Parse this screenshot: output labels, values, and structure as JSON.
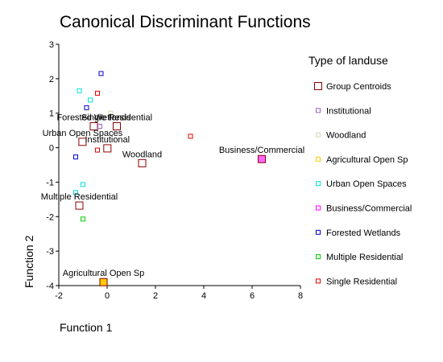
{
  "chart_data": {
    "type": "scatter",
    "title": "Canonical Discriminant Functions",
    "xlabel": "Function 1",
    "ylabel": "Function 2",
    "xlim": [
      -2,
      8
    ],
    "ylim": [
      -4,
      3
    ],
    "xticks": [
      "-2",
      "0",
      "2",
      "4",
      "6",
      "8"
    ],
    "yticks": [
      "3",
      "2",
      "1",
      "0",
      "-1",
      "-2",
      "-3",
      "-4"
    ],
    "grid": false,
    "legend_position": "right",
    "legend_title": "Type of landuse",
    "series": [
      {
        "name": "Group Centroids",
        "color": "#8b0000",
        "marker": "square-large",
        "points": [
          {
            "label": "Forested Wetlands",
            "x": -0.55,
            "y": 0.62
          },
          {
            "label": "Single Residential",
            "x": 0.4,
            "y": 0.62
          },
          {
            "label": "Urban Open Spaces",
            "x": -1.02,
            "y": 0.17
          },
          {
            "label": "Institutional",
            "x": 0.01,
            "y": -0.02
          },
          {
            "label": "Woodland",
            "x": 1.45,
            "y": -0.45
          },
          {
            "label": "Business/Commercial",
            "x": 6.4,
            "y": -0.33
          },
          {
            "label": "Multiple Residential",
            "x": -1.15,
            "y": -1.68
          },
          {
            "label": "Agricultural Open Sp",
            "x": -0.15,
            "y": -3.9
          }
        ]
      },
      {
        "name": "Institutional",
        "color": "#a060c0",
        "points": [
          {
            "x": -0.3,
            "y": 0.62
          }
        ]
      },
      {
        "name": "Woodland",
        "color": "#d8d8b0",
        "points": [
          {
            "x": 0.15,
            "y": 1.0
          }
        ]
      },
      {
        "name": "Agricultural Open Sp",
        "color": "#ffcc00",
        "points": []
      },
      {
        "name": "Urban Open Spaces",
        "color": "#00e0e0",
        "points": [
          {
            "x": -1.15,
            "y": 1.65
          },
          {
            "x": -0.7,
            "y": 1.38
          },
          {
            "x": -1.0,
            "y": -1.07
          },
          {
            "x": -1.3,
            "y": -1.3
          }
        ]
      },
      {
        "name": "Business/Commercial",
        "color": "#ff00ff",
        "points": []
      },
      {
        "name": "Forested Wetlands",
        "color": "#0000cc",
        "points": [
          {
            "x": -0.25,
            "y": 2.15
          },
          {
            "x": -0.85,
            "y": 1.16
          },
          {
            "x": -1.3,
            "y": -0.27
          }
        ]
      },
      {
        "name": "Multiple Residential",
        "color": "#00cc00",
        "points": [
          {
            "x": -1.0,
            "y": -2.07
          }
        ]
      },
      {
        "name": "Single Residential",
        "color": "#e00000",
        "points": [
          {
            "x": -0.4,
            "y": 1.58
          },
          {
            "x": -0.4,
            "y": -0.07
          },
          {
            "x": 3.45,
            "y": 0.33
          }
        ]
      }
    ]
  }
}
